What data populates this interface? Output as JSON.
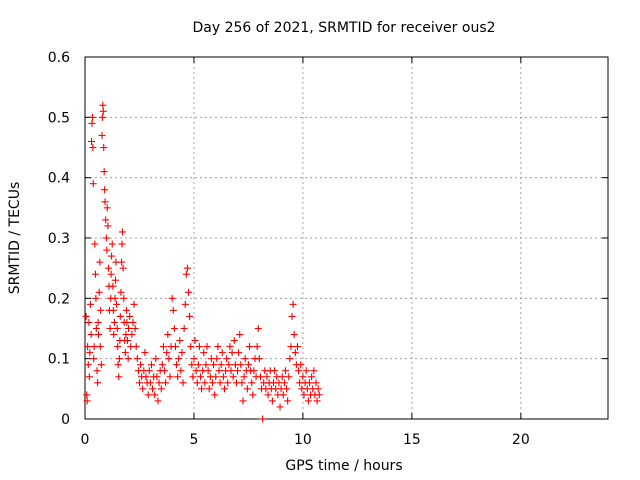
{
  "chart_data": {
    "type": "scatter",
    "title": "Day 256 of 2021, SRMTID for receiver ous2",
    "xlabel": "GPS time / hours",
    "ylabel": "SRMTID / TECUs",
    "xlim": [
      0,
      24
    ],
    "ylim": [
      0,
      0.6
    ],
    "x_ticks": [
      0,
      5,
      10,
      15,
      20
    ],
    "x_tick_labels": [
      "0",
      "5",
      "10",
      "15",
      "20"
    ],
    "y_ticks": [
      0,
      0.1,
      0.2,
      0.3,
      0.4,
      0.5,
      0.6
    ],
    "y_tick_labels": [
      "0",
      "0.1",
      "0.2",
      "0.3",
      "0.4",
      "0.5",
      "0.6"
    ],
    "grid": true,
    "marker": "plus",
    "color": "#ff0000",
    "series": [
      {
        "name": "SRMTID",
        "points": [
          [
            0.05,
            0.17
          ],
          [
            0.08,
            0.04
          ],
          [
            0.1,
            0.03
          ],
          [
            0.12,
            0.12
          ],
          [
            0.15,
            0.09
          ],
          [
            0.18,
            0.16
          ],
          [
            0.2,
            0.07
          ],
          [
            0.22,
            0.11
          ],
          [
            0.25,
            0.19
          ],
          [
            0.28,
            0.14
          ],
          [
            0.3,
            0.46
          ],
          [
            0.32,
            0.49
          ],
          [
            0.34,
            0.5
          ],
          [
            0.36,
            0.45
          ],
          [
            0.38,
            0.39
          ],
          [
            0.4,
            0.1
          ],
          [
            0.42,
            0.12
          ],
          [
            0.45,
            0.29
          ],
          [
            0.48,
            0.24
          ],
          [
            0.5,
            0.2
          ],
          [
            0.52,
            0.15
          ],
          [
            0.55,
            0.08
          ],
          [
            0.58,
            0.06
          ],
          [
            0.6,
            0.16
          ],
          [
            0.62,
            0.14
          ],
          [
            0.65,
            0.21
          ],
          [
            0.68,
            0.26
          ],
          [
            0.7,
            0.12
          ],
          [
            0.72,
            0.18
          ],
          [
            0.75,
            0.09
          ],
          [
            0.78,
            0.47
          ],
          [
            0.8,
            0.5
          ],
          [
            0.82,
            0.52
          ],
          [
            0.84,
            0.51
          ],
          [
            0.86,
            0.45
          ],
          [
            0.88,
            0.41
          ],
          [
            0.9,
            0.38
          ],
          [
            0.92,
            0.36
          ],
          [
            0.95,
            0.33
          ],
          [
            0.98,
            0.3
          ],
          [
            1.0,
            0.28
          ],
          [
            1.02,
            0.35
          ],
          [
            1.05,
            0.32
          ],
          [
            1.08,
            0.25
          ],
          [
            1.1,
            0.22
          ],
          [
            1.12,
            0.18
          ],
          [
            1.15,
            0.15
          ],
          [
            1.18,
            0.2
          ],
          [
            1.2,
            0.24
          ],
          [
            1.22,
            0.27
          ],
          [
            1.25,
            0.29
          ],
          [
            1.28,
            0.22
          ],
          [
            1.3,
            0.18
          ],
          [
            1.32,
            0.14
          ],
          [
            1.35,
            0.16
          ],
          [
            1.38,
            0.2
          ],
          [
            1.4,
            0.23
          ],
          [
            1.42,
            0.26
          ],
          [
            1.45,
            0.19
          ],
          [
            1.48,
            0.15
          ],
          [
            1.5,
            0.12
          ],
          [
            1.52,
            0.09
          ],
          [
            1.55,
            0.07
          ],
          [
            1.58,
            0.1
          ],
          [
            1.6,
            0.13
          ],
          [
            1.62,
            0.17
          ],
          [
            1.65,
            0.21
          ],
          [
            1.68,
            0.26
          ],
          [
            1.7,
            0.29
          ],
          [
            1.72,
            0.31
          ],
          [
            1.75,
            0.25
          ],
          [
            1.78,
            0.2
          ],
          [
            1.8,
            0.16
          ],
          [
            1.82,
            0.13
          ],
          [
            1.85,
            0.11
          ],
          [
            1.88,
            0.14
          ],
          [
            1.9,
            0.18
          ],
          [
            1.92,
            0.16
          ],
          [
            1.95,
            0.13
          ],
          [
            1.98,
            0.1
          ],
          [
            2.0,
            0.15
          ],
          [
            2.05,
            0.17
          ],
          [
            2.1,
            0.12
          ],
          [
            2.15,
            0.14
          ],
          [
            2.2,
            0.16
          ],
          [
            2.25,
            0.19
          ],
          [
            2.3,
            0.15
          ],
          [
            2.35,
            0.12
          ],
          [
            2.4,
            0.1
          ],
          [
            2.45,
            0.08
          ],
          [
            2.5,
            0.06
          ],
          [
            2.55,
            0.09
          ],
          [
            2.6,
            0.07
          ],
          [
            2.65,
            0.05
          ],
          [
            2.7,
            0.08
          ],
          [
            2.75,
            0.11
          ],
          [
            2.8,
            0.07
          ],
          [
            2.85,
            0.06
          ],
          [
            2.9,
            0.04
          ],
          [
            2.95,
            0.08
          ],
          [
            3.0,
            0.06
          ],
          [
            3.05,
            0.09
          ],
          [
            3.1,
            0.05
          ],
          [
            3.15,
            0.07
          ],
          [
            3.2,
            0.04
          ],
          [
            3.25,
            0.1
          ],
          [
            3.3,
            0.07
          ],
          [
            3.35,
            0.03
          ],
          [
            3.4,
            0.06
          ],
          [
            3.45,
            0.08
          ],
          [
            3.5,
            0.05
          ],
          [
            3.55,
            0.09
          ],
          [
            3.6,
            0.12
          ],
          [
            3.65,
            0.08
          ],
          [
            3.7,
            0.06
          ],
          [
            3.75,
            0.11
          ],
          [
            3.8,
            0.14
          ],
          [
            3.85,
            0.1
          ],
          [
            3.9,
            0.07
          ],
          [
            3.95,
            0.12
          ],
          [
            4.0,
            0.2
          ],
          [
            4.05,
            0.18
          ],
          [
            4.1,
            0.15
          ],
          [
            4.15,
            0.12
          ],
          [
            4.2,
            0.09
          ],
          [
            4.25,
            0.07
          ],
          [
            4.3,
            0.1
          ],
          [
            4.35,
            0.13
          ],
          [
            4.4,
            0.08
          ],
          [
            4.45,
            0.11
          ],
          [
            4.5,
            0.06
          ],
          [
            4.55,
            0.15
          ],
          [
            4.6,
            0.19
          ],
          [
            4.65,
            0.24
          ],
          [
            4.7,
            0.25
          ],
          [
            4.75,
            0.21
          ],
          [
            4.8,
            0.17
          ],
          [
            4.85,
            0.12
          ],
          [
            4.9,
            0.09
          ],
          [
            4.95,
            0.07
          ],
          [
            5.0,
            0.1
          ],
          [
            5.05,
            0.13
          ],
          [
            5.1,
            0.08
          ],
          [
            5.15,
            0.06
          ],
          [
            5.2,
            0.09
          ],
          [
            5.25,
            0.12
          ],
          [
            5.3,
            0.07
          ],
          [
            5.35,
            0.05
          ],
          [
            5.4,
            0.08
          ],
          [
            5.45,
            0.11
          ],
          [
            5.5,
            0.06
          ],
          [
            5.55,
            0.09
          ],
          [
            5.6,
            0.12
          ],
          [
            5.65,
            0.08
          ],
          [
            5.7,
            0.05
          ],
          [
            5.75,
            0.07
          ],
          [
            5.8,
            0.1
          ],
          [
            5.85,
            0.06
          ],
          [
            5.9,
            0.09
          ],
          [
            5.95,
            0.04
          ],
          [
            6.0,
            0.07
          ],
          [
            6.05,
            0.1
          ],
          [
            6.1,
            0.12
          ],
          [
            6.15,
            0.08
          ],
          [
            6.2,
            0.06
          ],
          [
            6.25,
            0.09
          ],
          [
            6.3,
            0.11
          ],
          [
            6.35,
            0.07
          ],
          [
            6.4,
            0.05
          ],
          [
            6.45,
            0.08
          ],
          [
            6.5,
            0.1
          ],
          [
            6.55,
            0.06
          ],
          [
            6.6,
            0.09
          ],
          [
            6.65,
            0.12
          ],
          [
            6.7,
            0.08
          ],
          [
            6.75,
            0.11
          ],
          [
            6.8,
            0.07
          ],
          [
            6.85,
            0.13
          ],
          [
            6.9,
            0.09
          ],
          [
            6.95,
            0.06
          ],
          [
            7.0,
            0.08
          ],
          [
            7.05,
            0.11
          ],
          [
            7.1,
            0.14
          ],
          [
            7.15,
            0.09
          ],
          [
            7.2,
            0.06
          ],
          [
            7.25,
            0.03
          ],
          [
            7.3,
            0.07
          ],
          [
            7.35,
            0.1
          ],
          [
            7.4,
            0.08
          ],
          [
            7.45,
            0.05
          ],
          [
            7.5,
            0.09
          ],
          [
            7.55,
            0.12
          ],
          [
            7.6,
            0.08
          ],
          [
            7.65,
            0.06
          ],
          [
            7.7,
            0.04
          ],
          [
            7.75,
            0.08
          ],
          [
            7.8,
            0.1
          ],
          [
            7.85,
            0.07
          ],
          [
            7.9,
            0.12
          ],
          [
            7.95,
            0.15
          ],
          [
            8.0,
            0.1
          ],
          [
            8.05,
            0.07
          ],
          [
            8.1,
            0.05
          ],
          [
            8.15,
            0.0
          ],
          [
            8.2,
            0.06
          ],
          [
            8.25,
            0.08
          ],
          [
            8.3,
            0.05
          ],
          [
            8.35,
            0.07
          ],
          [
            8.4,
            0.04
          ],
          [
            8.45,
            0.06
          ],
          [
            8.5,
            0.08
          ],
          [
            8.55,
            0.05
          ],
          [
            8.6,
            0.03
          ],
          [
            8.65,
            0.06
          ],
          [
            8.7,
            0.08
          ],
          [
            8.75,
            0.05
          ],
          [
            8.8,
            0.07
          ],
          [
            8.85,
            0.04
          ],
          [
            8.9,
            0.06
          ],
          [
            8.95,
            0.02
          ],
          [
            9.0,
            0.05
          ],
          [
            9.05,
            0.07
          ],
          [
            9.1,
            0.04
          ],
          [
            9.15,
            0.06
          ],
          [
            9.2,
            0.08
          ],
          [
            9.25,
            0.05
          ],
          [
            9.3,
            0.03
          ],
          [
            9.35,
            0.07
          ],
          [
            9.4,
            0.1
          ],
          [
            9.45,
            0.12
          ],
          [
            9.5,
            0.17
          ],
          [
            9.55,
            0.19
          ],
          [
            9.6,
            0.14
          ],
          [
            9.65,
            0.11
          ],
          [
            9.7,
            0.09
          ],
          [
            9.75,
            0.12
          ],
          [
            9.8,
            0.08
          ],
          [
            9.85,
            0.06
          ],
          [
            9.9,
            0.09
          ],
          [
            9.95,
            0.05
          ],
          [
            10.0,
            0.07
          ],
          [
            10.05,
            0.04
          ],
          [
            10.1,
            0.06
          ],
          [
            10.15,
            0.08
          ],
          [
            10.2,
            0.05
          ],
          [
            10.25,
            0.03
          ],
          [
            10.3,
            0.06
          ],
          [
            10.35,
            0.04
          ],
          [
            10.4,
            0.07
          ],
          [
            10.45,
            0.05
          ],
          [
            10.5,
            0.08
          ],
          [
            10.55,
            0.04
          ],
          [
            10.6,
            0.06
          ],
          [
            10.65,
            0.03
          ],
          [
            10.7,
            0.05
          ],
          [
            10.75,
            0.04
          ]
        ]
      }
    ]
  }
}
